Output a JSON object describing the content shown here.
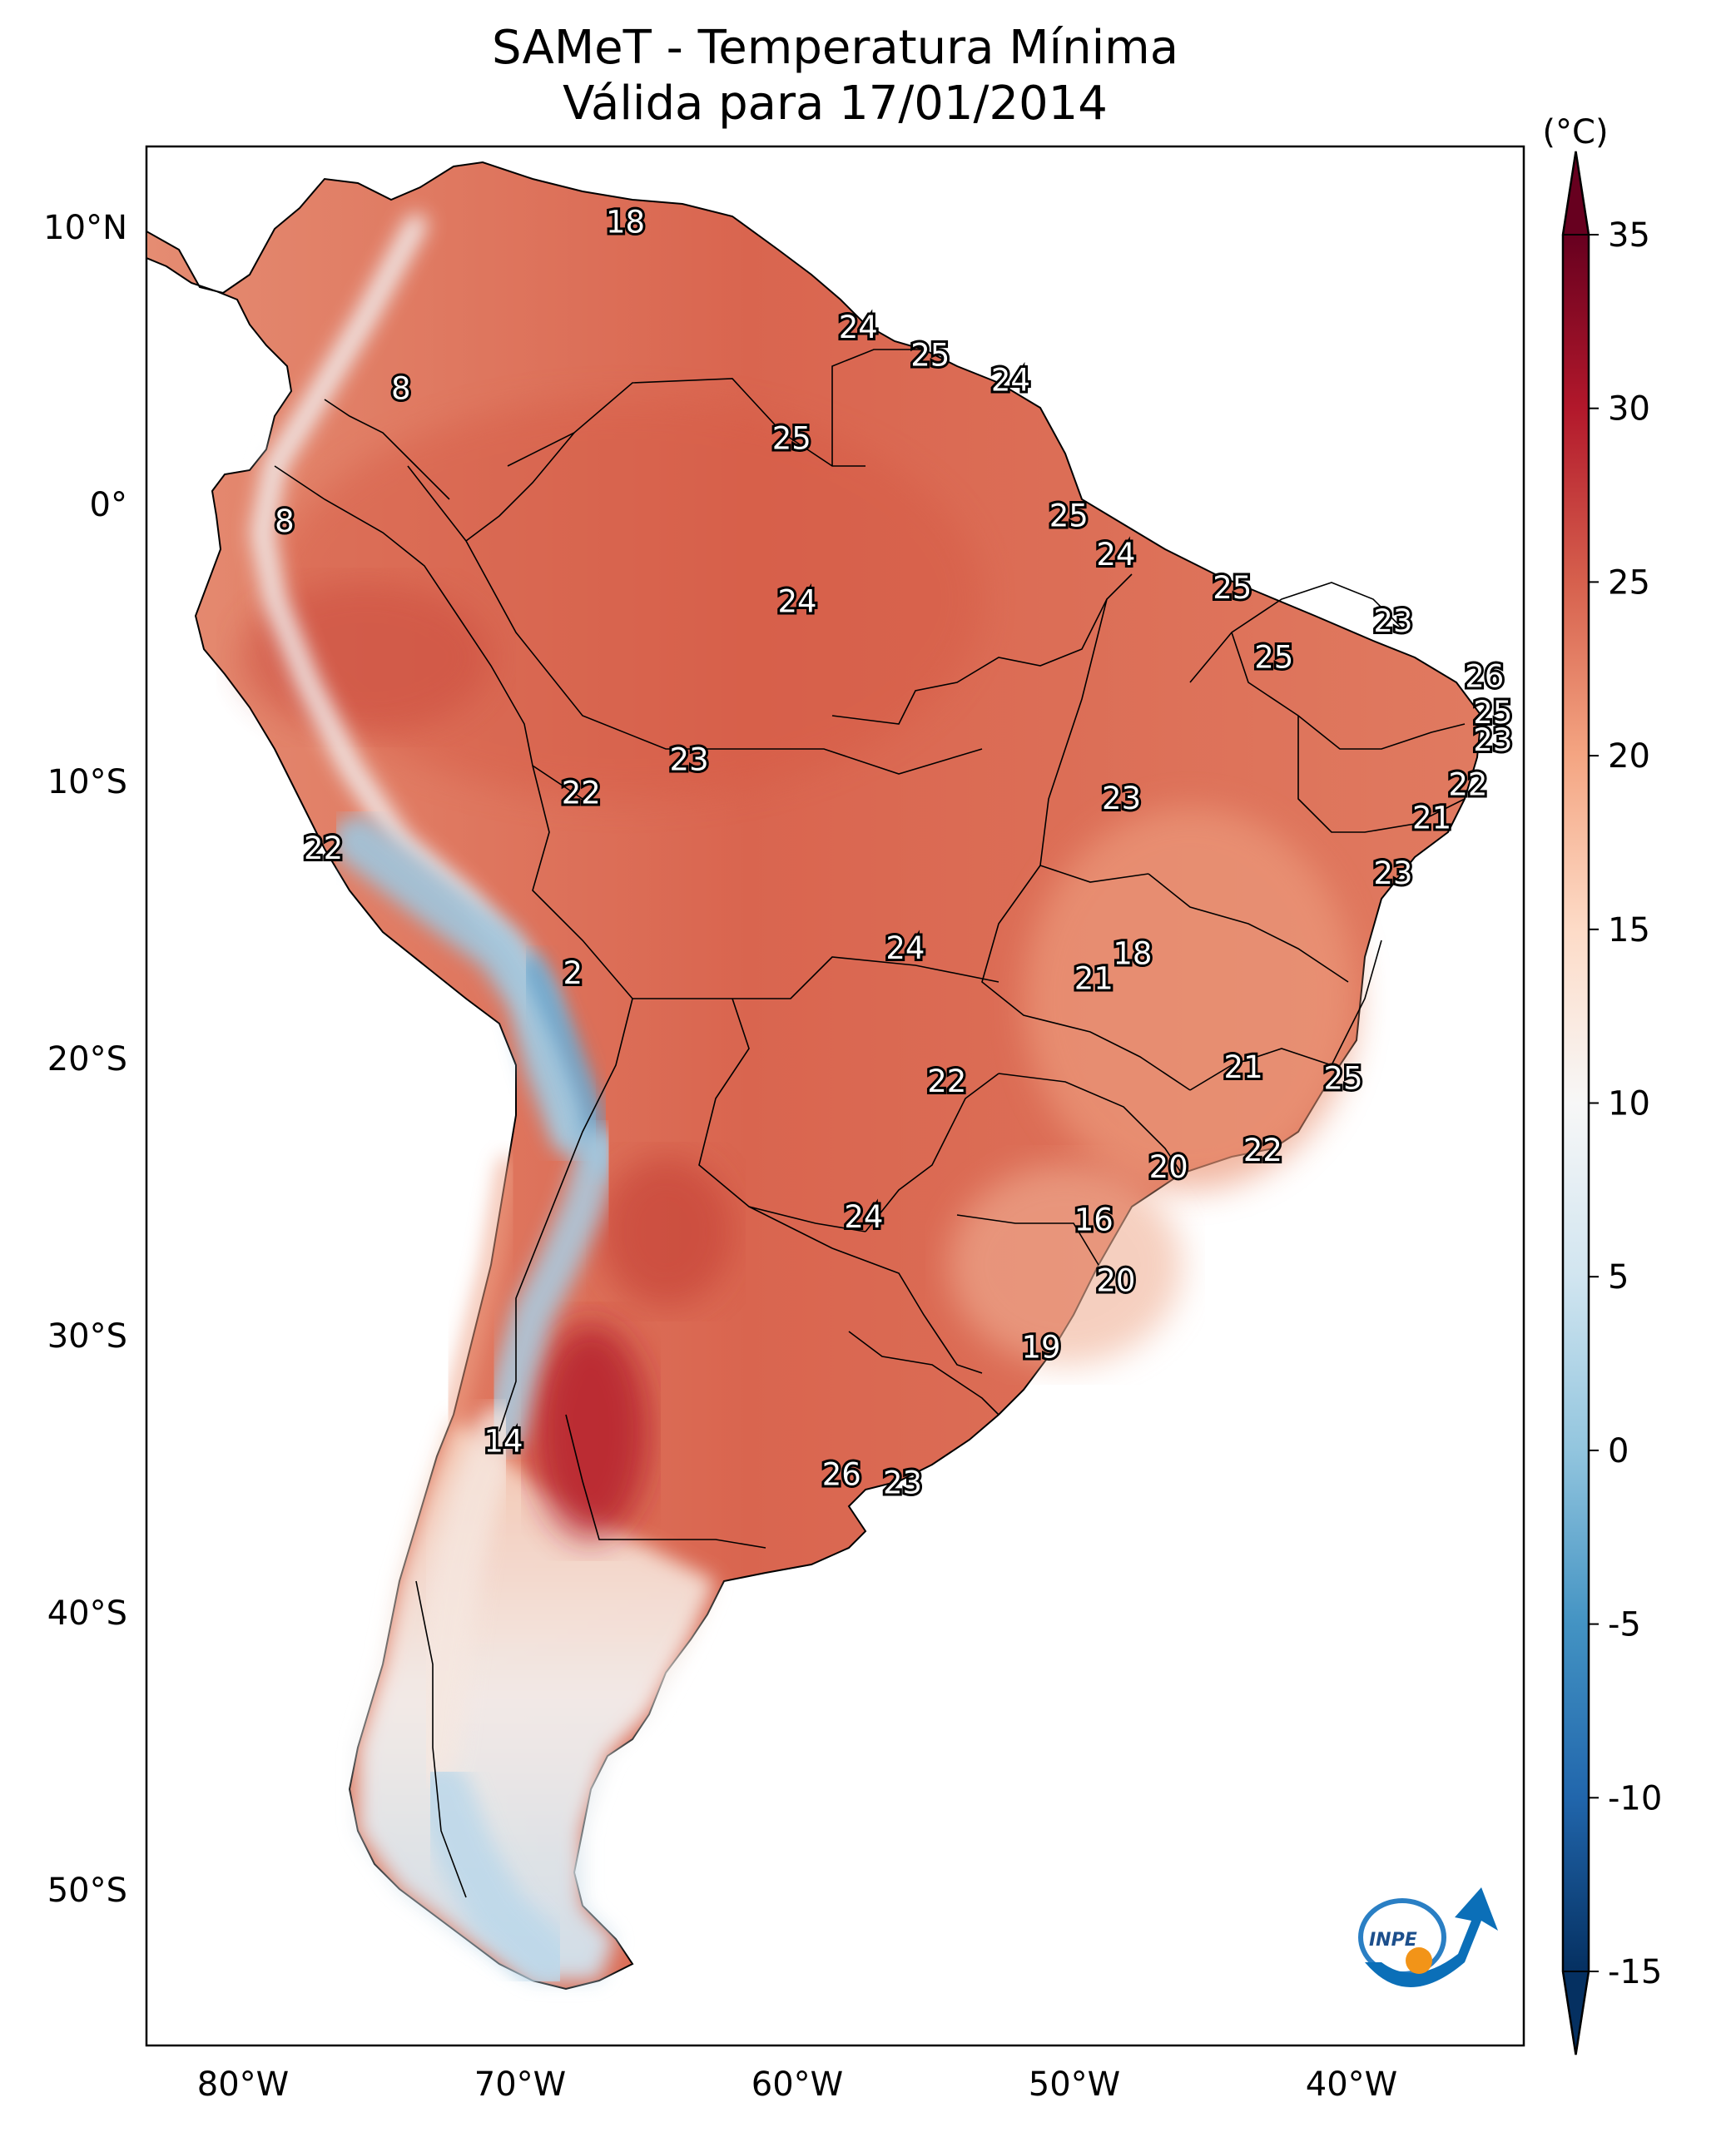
{
  "title": {
    "line1": "SAMeT - Temperatura Mínima",
    "line2": "Válida para 17/01/2014"
  },
  "axes": {
    "lat_labels": [
      "10°N",
      "0°",
      "10°S",
      "20°S",
      "30°S",
      "40°S",
      "50°S"
    ],
    "lon_labels": [
      "80°W",
      "70°W",
      "60°W",
      "50°W",
      "40°W"
    ]
  },
  "colorbar": {
    "unit": "(°C)",
    "ticks": [
      "35",
      "30",
      "25",
      "20",
      "15",
      "10",
      "5",
      "0",
      "-5",
      "-10",
      "-15"
    ],
    "range": [
      -15,
      35
    ],
    "colors": [
      "#053061",
      "#2166ac",
      "#4393c3",
      "#92c5de",
      "#d1e5f0",
      "#f7f7f7",
      "#fddbc7",
      "#f4a582",
      "#d6604d",
      "#b2182b",
      "#67001f"
    ]
  },
  "station_values": [
    {
      "lon": -66.2,
      "lat": 10.6,
      "value": "18"
    },
    {
      "lon": -57.8,
      "lat": 6.8,
      "value": "24"
    },
    {
      "lon": -55.2,
      "lat": 5.8,
      "value": "25"
    },
    {
      "lon": -52.3,
      "lat": 4.9,
      "value": "24"
    },
    {
      "lon": -74.3,
      "lat": 4.6,
      "value": "8"
    },
    {
      "lon": -60.2,
      "lat": 2.8,
      "value": "25"
    },
    {
      "lon": -78.5,
      "lat": -0.2,
      "value": "8"
    },
    {
      "lon": -50.2,
      "lat": 0.0,
      "value": "25"
    },
    {
      "lon": -48.5,
      "lat": -1.4,
      "value": "24"
    },
    {
      "lon": -44.3,
      "lat": -2.6,
      "value": "25"
    },
    {
      "lon": -60.0,
      "lat": -3.1,
      "value": "24"
    },
    {
      "lon": -38.5,
      "lat": -3.8,
      "value": "23"
    },
    {
      "lon": -42.8,
      "lat": -5.1,
      "value": "25"
    },
    {
      "lon": -35.2,
      "lat": -5.8,
      "value": "26"
    },
    {
      "lon": -34.9,
      "lat": -7.1,
      "value": "25"
    },
    {
      "lon": -34.9,
      "lat": -8.1,
      "value": "23"
    },
    {
      "lon": -63.9,
      "lat": -8.8,
      "value": "23"
    },
    {
      "lon": -35.8,
      "lat": -9.7,
      "value": "22"
    },
    {
      "lon": -67.8,
      "lat": -10.0,
      "value": "22"
    },
    {
      "lon": -48.3,
      "lat": -10.2,
      "value": "23"
    },
    {
      "lon": -37.1,
      "lat": -10.9,
      "value": "21"
    },
    {
      "lon": -77.1,
      "lat": -12.0,
      "value": "22"
    },
    {
      "lon": -38.5,
      "lat": -12.9,
      "value": "23"
    },
    {
      "lon": -56.1,
      "lat": -15.6,
      "value": "24"
    },
    {
      "lon": -47.9,
      "lat": -15.8,
      "value": "18"
    },
    {
      "lon": -49.3,
      "lat": -16.7,
      "value": "21"
    },
    {
      "lon": -68.1,
      "lat": -16.5,
      "value": "2"
    },
    {
      "lon": -43.9,
      "lat": -19.9,
      "value": "21"
    },
    {
      "lon": -40.3,
      "lat": -20.3,
      "value": "25"
    },
    {
      "lon": -54.6,
      "lat": -20.4,
      "value": "22"
    },
    {
      "lon": -43.2,
      "lat": -22.9,
      "value": "22"
    },
    {
      "lon": -46.6,
      "lat": -23.5,
      "value": "20"
    },
    {
      "lon": -57.6,
      "lat": -25.3,
      "value": "24"
    },
    {
      "lon": -49.3,
      "lat": -25.4,
      "value": "16"
    },
    {
      "lon": -48.5,
      "lat": -27.6,
      "value": "20"
    },
    {
      "lon": -51.2,
      "lat": -30.0,
      "value": "19"
    },
    {
      "lon": -70.6,
      "lat": -33.4,
      "value": "14"
    },
    {
      "lon": -58.4,
      "lat": -34.6,
      "value": "26"
    },
    {
      "lon": -56.2,
      "lat": -34.9,
      "value": "23"
    }
  ]
}
